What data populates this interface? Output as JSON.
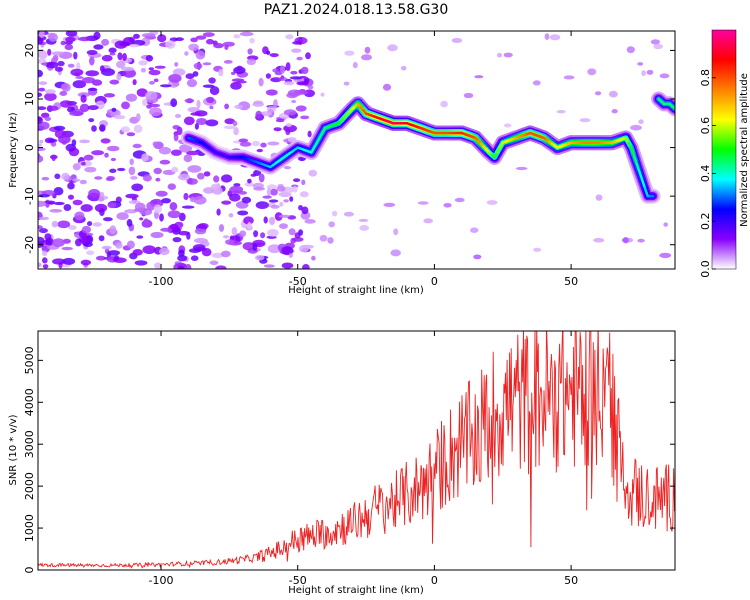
{
  "chart_data": [
    {
      "type": "heatmap",
      "title": "PAZ1.2024.018.13.58.G30",
      "xlabel": "Height of straight line (km)",
      "ylabel": "Frequency (Hz)",
      "xlim": [
        -145,
        88
      ],
      "ylim": [
        -25,
        24
      ],
      "xticks": [
        -100,
        -50,
        0,
        50
      ],
      "yticks": [
        -20,
        -10,
        0,
        10,
        20
      ],
      "colorbar": {
        "label": "Normalized spectral amplitude",
        "range": [
          0,
          1
        ],
        "ticks": [
          "0.0",
          "0.2",
          "0.4",
          "0.6",
          "0.8"
        ],
        "colormap": [
          "#ffffff",
          "#8a00ff",
          "#0000ff",
          "#00ffff",
          "#00ff00",
          "#ffff00",
          "#ff8000",
          "#ff0000",
          "#ff00a0"
        ]
      },
      "ridge": {
        "x": [
          -90,
          -85,
          -80,
          -75,
          -70,
          -65,
          -60,
          -55,
          -50,
          -45,
          -40,
          -35,
          -30,
          -28,
          -25,
          -20,
          -15,
          -10,
          -5,
          0,
          5,
          10,
          15,
          20,
          22,
          25,
          30,
          35,
          40,
          45,
          50,
          55,
          60,
          65,
          70,
          72,
          75,
          78,
          80
        ],
        "y": [
          2,
          1,
          -1,
          -2,
          -2,
          -3,
          -4,
          -2,
          0,
          -1,
          4,
          5,
          8,
          9,
          7,
          6,
          5,
          5,
          4,
          3,
          3,
          3,
          2,
          -1,
          -2,
          1,
          2,
          3,
          2,
          0,
          1,
          1,
          1,
          1,
          2,
          0,
          -5,
          -10,
          -10
        ],
        "amplitude": [
          0.3,
          0.25,
          0.2,
          0.2,
          0.25,
          0.3,
          0.35,
          0.4,
          0.35,
          0.4,
          0.45,
          0.5,
          0.6,
          0.7,
          0.8,
          0.9,
          0.95,
          0.9,
          0.85,
          0.8,
          0.8,
          0.85,
          0.8,
          0.6,
          0.5,
          0.6,
          0.7,
          0.8,
          0.8,
          0.6,
          0.7,
          0.75,
          0.75,
          0.7,
          0.6,
          0.5,
          0.4,
          0.35,
          0.3
        ]
      },
      "upper_right_branch": {
        "x": [
          82,
          84,
          86,
          88
        ],
        "y": [
          10,
          9,
          9,
          8
        ]
      }
    },
    {
      "type": "line",
      "xlabel": "Height of straight line (km)",
      "ylabel": "SNR (10 * v/v)",
      "xlim": [
        -145,
        88
      ],
      "ylim": [
        0,
        5700
      ],
      "xticks": [
        -100,
        -50,
        0,
        50
      ],
      "yticks": [
        0,
        1000,
        2000,
        3000,
        4000,
        5000
      ],
      "color": "#ee2222",
      "envelope": {
        "x": [
          -145,
          -120,
          -100,
          -80,
          -70,
          -65,
          -60,
          -55,
          -50,
          -45,
          -40,
          -35,
          -30,
          -25,
          -20,
          -15,
          -10,
          -5,
          0,
          5,
          10,
          15,
          20,
          25,
          30,
          35,
          40,
          45,
          50,
          55,
          60,
          62,
          65,
          67,
          70,
          75,
          80,
          85,
          88
        ],
        "y": [
          120,
          110,
          130,
          180,
          250,
          300,
          400,
          550,
          750,
          800,
          900,
          1000,
          1100,
          1300,
          1500,
          1600,
          1800,
          2000,
          2300,
          2700,
          3000,
          3200,
          3600,
          3900,
          4050,
          4100,
          4150,
          4200,
          4200,
          4300,
          4500,
          4600,
          4300,
          3000,
          2000,
          1800,
          1700,
          1700,
          1900
        ]
      }
    }
  ]
}
